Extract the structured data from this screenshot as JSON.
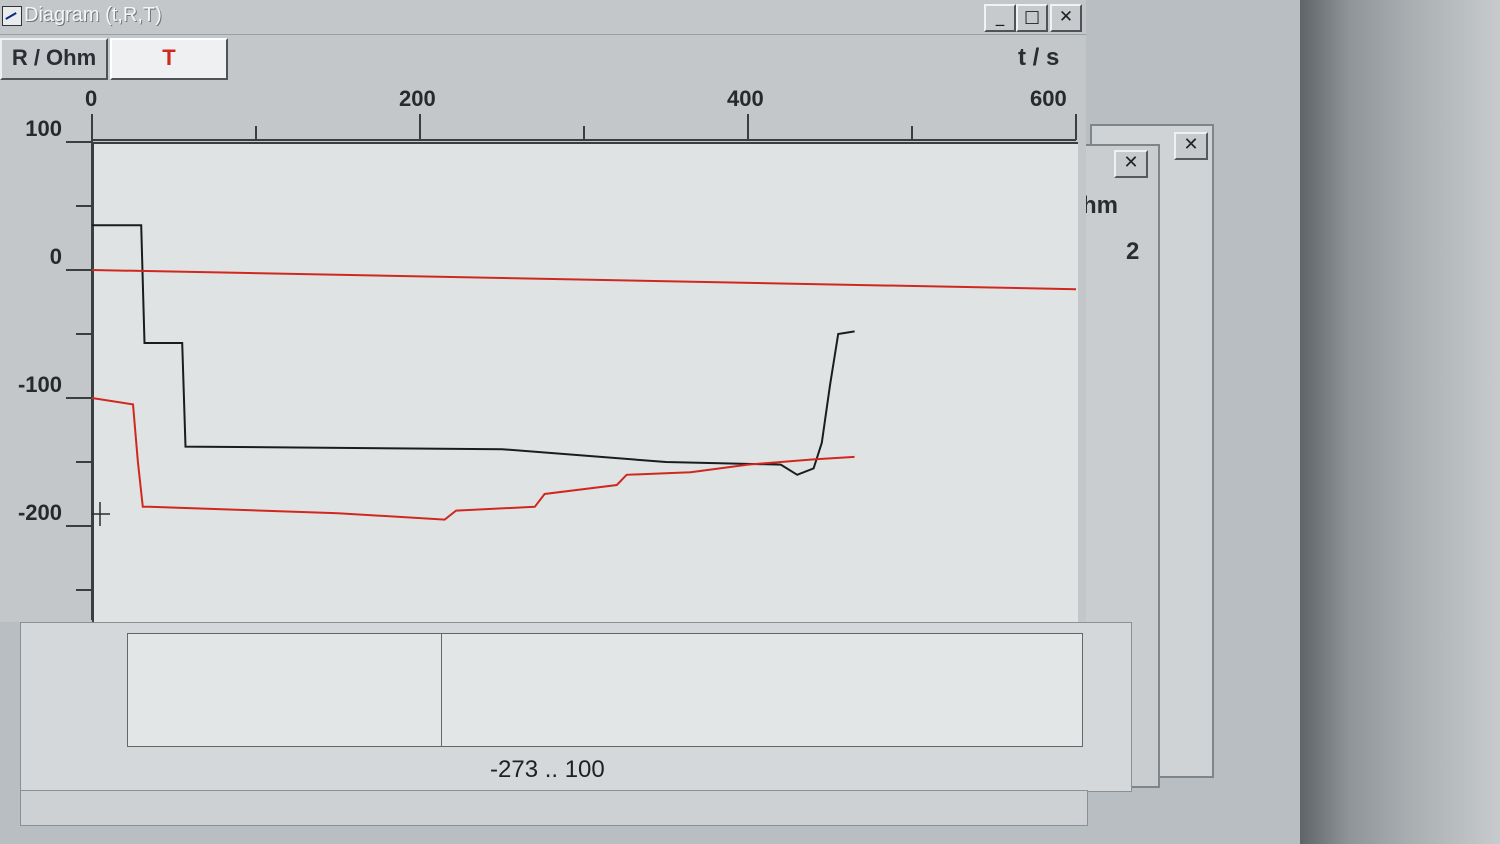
{
  "window": {
    "title": "Diagram (t,R,T)",
    "buttons": {
      "minimize": "_",
      "maximize": "□",
      "close": "✕"
    }
  },
  "toolbar": {
    "axis_button": "R / Ohm",
    "t_button": "T",
    "x_unit": "t / s"
  },
  "back_windows": {
    "label_ohm": "hm",
    "label_2": "2",
    "close": "✕"
  },
  "lower": {
    "range_text": "-273 .. 100"
  },
  "colors": {
    "series_black": "#1a1c1e",
    "series_red": "#d0281e",
    "plot_bg": "#dfe3e4"
  },
  "chart_data": {
    "type": "line",
    "xlabel": "t / s",
    "ylabel": "R / Ohm",
    "xlim": [
      0,
      600
    ],
    "ylim": [
      -260,
      100
    ],
    "x_ticks": [
      0,
      200,
      400,
      600
    ],
    "y_ticks": [
      100,
      0,
      -100,
      -200
    ],
    "series": [
      {
        "color": "#1a1c1e",
        "points": [
          [
            0,
            35
          ],
          [
            30,
            35
          ],
          [
            32,
            -57
          ],
          [
            55,
            -57
          ],
          [
            57,
            -138
          ],
          [
            250,
            -140
          ],
          [
            350,
            -150
          ],
          [
            420,
            -152
          ],
          [
            430,
            -160
          ],
          [
            440,
            -155
          ],
          [
            445,
            -135
          ],
          [
            450,
            -90
          ],
          [
            455,
            -50
          ],
          [
            465,
            -48
          ]
        ]
      },
      {
        "color": "#d0281e",
        "points": [
          [
            0,
            -100
          ],
          [
            25,
            -105
          ],
          [
            28,
            -150
          ],
          [
            31,
            -185
          ],
          [
            35,
            -185
          ],
          [
            150,
            -190
          ],
          [
            215,
            -195
          ],
          [
            222,
            -188
          ],
          [
            270,
            -185
          ],
          [
            276,
            -175
          ],
          [
            320,
            -168
          ],
          [
            326,
            -160
          ],
          [
            365,
            -158
          ],
          [
            400,
            -152
          ],
          [
            440,
            -148
          ],
          [
            465,
            -146
          ]
        ]
      },
      {
        "color": "#d0281e",
        "points": [
          [
            0,
            0
          ],
          [
            600,
            -15
          ]
        ]
      }
    ]
  }
}
